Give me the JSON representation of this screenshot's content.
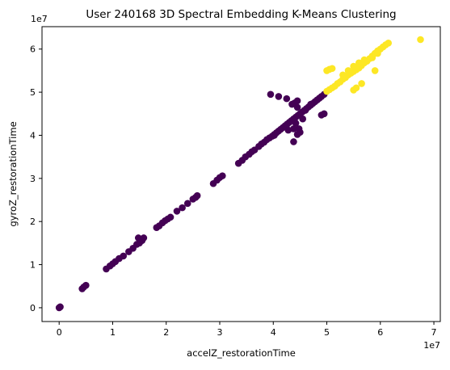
{
  "chart_data": {
    "type": "scatter",
    "title": "User 240168 3D Spectral Embedding K-Means Clustering",
    "xlabel": "accelZ_restorationTime",
    "ylabel": "gyroZ_restorationTime",
    "x_offset_label": "1e7",
    "y_offset_label": "1e7",
    "scale": 10000000,
    "xlim": [
      -0.32,
      7.12
    ],
    "ylim": [
      -0.32,
      6.52
    ],
    "xticks": [
      0,
      1,
      2,
      3,
      4,
      5,
      6,
      7
    ],
    "xtick_labels": [
      "0",
      "1",
      "2",
      "3",
      "4",
      "5",
      "6",
      "7"
    ],
    "yticks": [
      0,
      1,
      2,
      3,
      4,
      5,
      6
    ],
    "ytick_labels": [
      "0",
      "1",
      "2",
      "3",
      "4",
      "5",
      "6"
    ],
    "grid": false,
    "legend": "none",
    "colors": {
      "cluster_0": "#440154",
      "cluster_1": "#fde725"
    },
    "clusters": [
      {
        "cluster": 0,
        "color": "#440154",
        "points": [
          [
            0,
            0
          ],
          [
            0.01,
            0.01
          ],
          [
            0.02,
            0.02
          ],
          [
            0.43,
            0.44
          ],
          [
            0.46,
            0.48
          ],
          [
            0.5,
            0.52
          ],
          [
            0.88,
            0.9
          ],
          [
            0.95,
            0.97
          ],
          [
            1.0,
            1.02
          ],
          [
            1.05,
            1.07
          ],
          [
            1.12,
            1.14
          ],
          [
            1.2,
            1.2
          ],
          [
            1.3,
            1.3
          ],
          [
            1.38,
            1.38
          ],
          [
            1.45,
            1.47
          ],
          [
            1.5,
            1.5
          ],
          [
            1.55,
            1.56
          ],
          [
            1.48,
            1.62
          ],
          [
            1.58,
            1.62
          ],
          [
            1.82,
            1.86
          ],
          [
            1.87,
            1.9
          ],
          [
            1.93,
            1.97
          ],
          [
            1.98,
            2.02
          ],
          [
            2.03,
            2.06
          ],
          [
            2.08,
            2.1
          ],
          [
            2.2,
            2.24
          ],
          [
            2.3,
            2.32
          ],
          [
            2.4,
            2.42
          ],
          [
            2.5,
            2.52
          ],
          [
            2.55,
            2.56
          ],
          [
            2.58,
            2.6
          ],
          [
            2.88,
            2.88
          ],
          [
            2.95,
            2.96
          ],
          [
            3.0,
            3.02
          ],
          [
            3.05,
            3.06
          ],
          [
            3.35,
            3.35
          ],
          [
            3.42,
            3.42
          ],
          [
            3.48,
            3.5
          ],
          [
            3.55,
            3.56
          ],
          [
            3.6,
            3.62
          ],
          [
            3.65,
            3.66
          ],
          [
            3.73,
            3.74
          ],
          [
            3.78,
            3.8
          ],
          [
            3.83,
            3.84
          ],
          [
            3.88,
            3.9
          ],
          [
            3.93,
            3.94
          ],
          [
            3.98,
            3.98
          ],
          [
            4.02,
            4.02
          ],
          [
            4.06,
            4.06
          ],
          [
            4.1,
            4.1
          ],
          [
            4.14,
            4.14
          ],
          [
            4.18,
            4.18
          ],
          [
            4.22,
            4.22
          ],
          [
            4.26,
            4.26
          ],
          [
            4.3,
            4.3
          ],
          [
            4.34,
            4.34
          ],
          [
            4.38,
            4.38
          ],
          [
            4.42,
            4.42
          ],
          [
            4.46,
            4.46
          ],
          [
            4.5,
            4.5
          ],
          [
            4.54,
            4.54
          ],
          [
            4.58,
            4.58
          ],
          [
            4.62,
            4.62
          ],
          [
            4.66,
            4.66
          ],
          [
            4.7,
            4.7
          ],
          [
            4.74,
            4.74
          ],
          [
            4.78,
            4.78
          ],
          [
            4.82,
            4.82
          ],
          [
            4.86,
            4.86
          ],
          [
            4.9,
            4.9
          ],
          [
            4.95,
            4.95
          ],
          [
            3.95,
            4.95
          ],
          [
            4.1,
            4.9
          ],
          [
            4.25,
            4.85
          ],
          [
            4.4,
            4.75
          ],
          [
            4.45,
            4.65
          ],
          [
            4.35,
            4.72
          ],
          [
            4.45,
            4.8
          ],
          [
            4.38,
            3.85
          ],
          [
            4.45,
            4.02
          ],
          [
            4.5,
            4.07
          ],
          [
            4.28,
            4.12
          ],
          [
            4.38,
            4.15
          ],
          [
            4.42,
            4.28
          ],
          [
            4.55,
            4.38
          ],
          [
            4.48,
            4.15
          ],
          [
            4.9,
            4.47
          ],
          [
            4.95,
            4.5
          ],
          [
            4.02,
            4.0
          ],
          [
            4.6,
            4.58
          ],
          [
            4.7,
            4.72
          ]
        ]
      },
      {
        "cluster": 1,
        "color": "#fde725",
        "points": [
          [
            5.0,
            5.02
          ],
          [
            5.05,
            5.06
          ],
          [
            5.1,
            5.1
          ],
          [
            5.15,
            5.14
          ],
          [
            5.2,
            5.2
          ],
          [
            5.25,
            5.24
          ],
          [
            5.3,
            5.3
          ],
          [
            5.35,
            5.34
          ],
          [
            5.4,
            5.4
          ],
          [
            5.45,
            5.44
          ],
          [
            5.5,
            5.48
          ],
          [
            5.55,
            5.52
          ],
          [
            5.6,
            5.56
          ],
          [
            5.65,
            5.62
          ],
          [
            5.7,
            5.68
          ],
          [
            5.75,
            5.72
          ],
          [
            5.8,
            5.78
          ],
          [
            5.85,
            5.84
          ],
          [
            5.9,
            5.9
          ],
          [
            5.95,
            5.96
          ],
          [
            6.0,
            6.0
          ],
          [
            6.05,
            6.05
          ],
          [
            6.1,
            6.1
          ],
          [
            6.15,
            6.14
          ],
          [
            5.0,
            5.5
          ],
          [
            5.05,
            5.53
          ],
          [
            5.1,
            5.55
          ],
          [
            5.3,
            5.4
          ],
          [
            5.4,
            5.5
          ],
          [
            5.5,
            5.6
          ],
          [
            5.6,
            5.68
          ],
          [
            5.7,
            5.75
          ],
          [
            5.5,
            5.05
          ],
          [
            5.55,
            5.1
          ],
          [
            5.65,
            5.2
          ],
          [
            5.9,
            5.5
          ],
          [
            5.85,
            5.8
          ],
          [
            5.95,
            5.9
          ],
          [
            6.75,
            6.22
          ]
        ]
      }
    ]
  }
}
